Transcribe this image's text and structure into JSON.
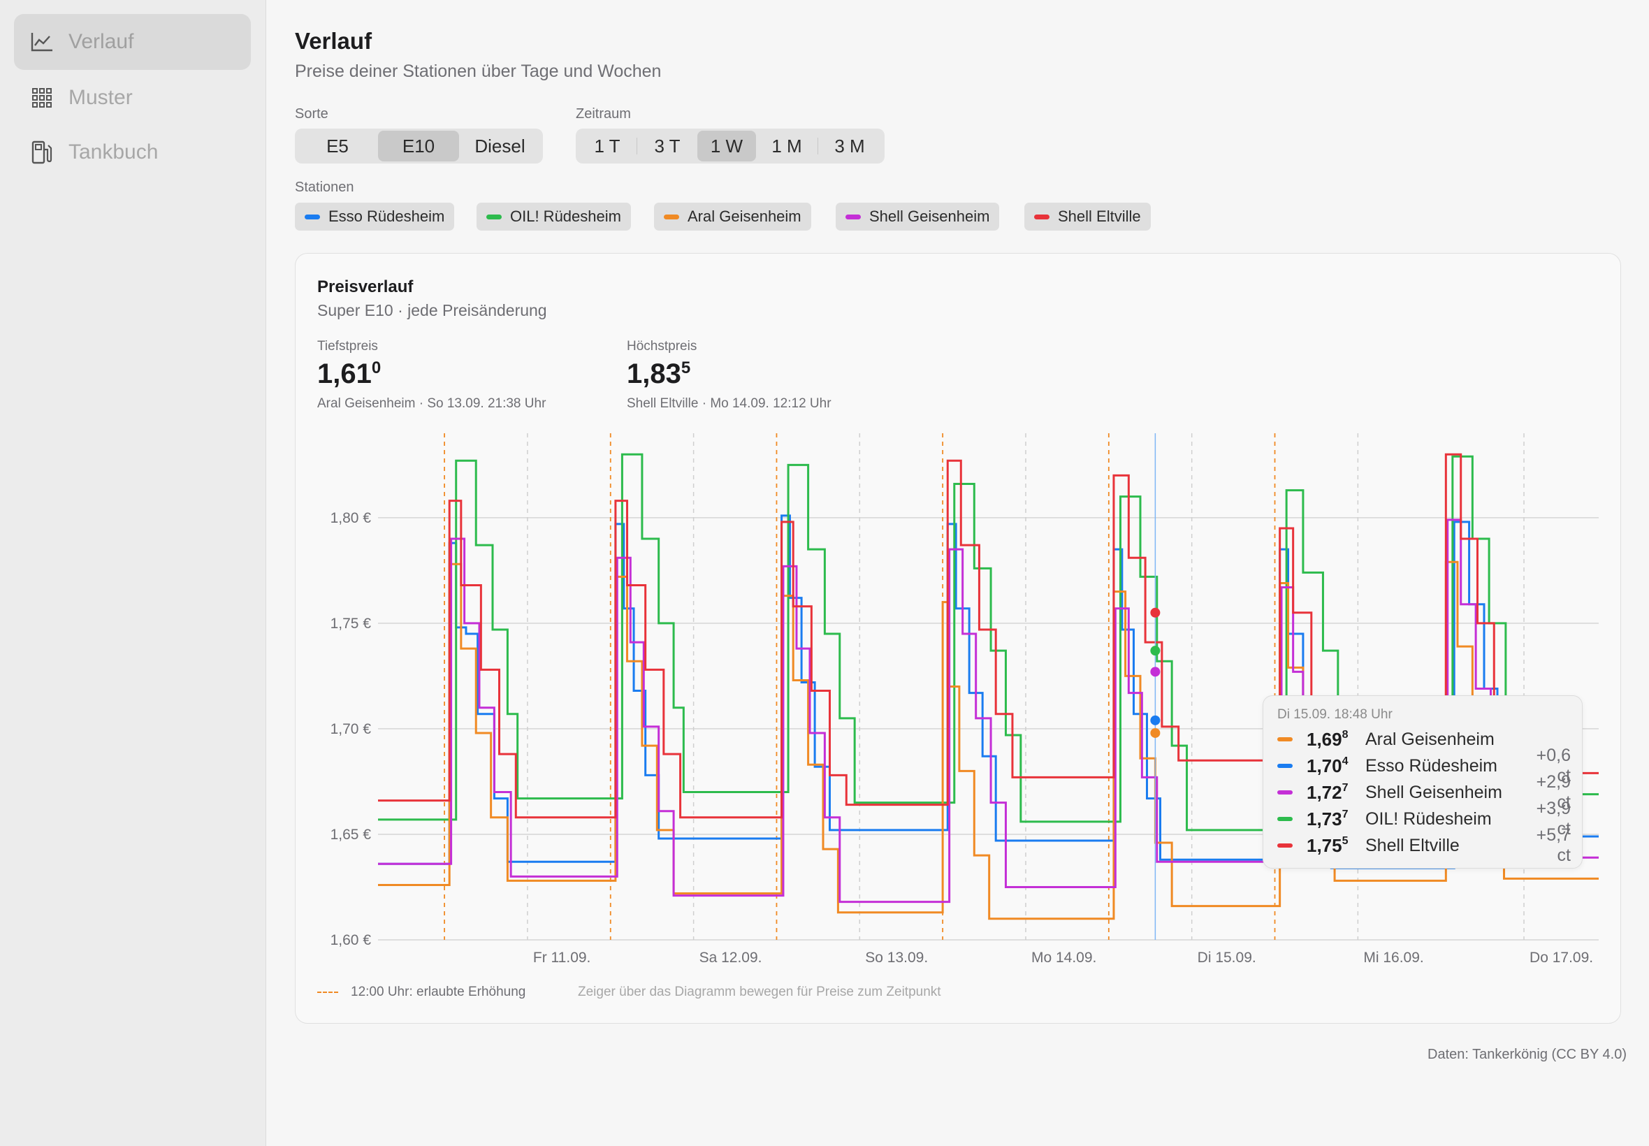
{
  "sidebar": {
    "items": [
      {
        "label": "Verlauf",
        "icon": "line-chart-icon",
        "active": true
      },
      {
        "label": "Muster",
        "icon": "grid-icon",
        "active": false
      },
      {
        "label": "Tankbuch",
        "icon": "fuel-pump-icon",
        "active": false
      }
    ]
  },
  "header": {
    "title": "Verlauf",
    "subtitle": "Preise deiner Stationen über Tage und Wochen"
  },
  "controls": {
    "sorte_label": "Sorte",
    "sorte_options": [
      "E5",
      "E10",
      "Diesel"
    ],
    "sorte_selected": "E10",
    "zeitraum_label": "Zeitraum",
    "zeitraum_options": [
      "1 T",
      "3 T",
      "1 W",
      "1 M",
      "3 M"
    ],
    "zeitraum_selected": "1 W",
    "stationen_label": "Stationen",
    "stations": [
      {
        "name": "Esso Rüdesheim",
        "color": "#1a7cf0"
      },
      {
        "name": "OIL! Rüdesheim",
        "color": "#2dbb4d"
      },
      {
        "name": "Aral Geisenheim",
        "color": "#f08a24"
      },
      {
        "name": "Shell Geisenheim",
        "color": "#c42fd6"
      },
      {
        "name": "Shell Eltville",
        "color": "#e8333a"
      }
    ]
  },
  "card": {
    "title": "Preisverlauf",
    "subtitle": "Super E10 · jede Preisänderung",
    "min": {
      "label": "Tiefstpreis",
      "value_main": "1,61",
      "value_sup": "0",
      "meta": "Aral Geisenheim · So 13.09. 21:38 Uhr"
    },
    "max": {
      "label": "Höchstpreis",
      "value_main": "1,83",
      "value_sup": "5",
      "meta": "Shell Eltville · Mo 14.09. 12:12 Uhr"
    },
    "legend_note": "12:00 Uhr: erlaubte Erhöhung",
    "hint": "Zeiger über das Diagramm bewegen für Preise zum Zeitpunkt"
  },
  "tooltip": {
    "time": "Di 15.09. 18:48 Uhr",
    "rows": [
      {
        "price_main": "1,69",
        "price_sup": "8",
        "name": "Aral Geisenheim",
        "delta": "",
        "color": "#f08a24"
      },
      {
        "price_main": "1,70",
        "price_sup": "4",
        "name": "Esso Rüdesheim",
        "delta": "+0,6 ct",
        "color": "#1a7cf0"
      },
      {
        "price_main": "1,72",
        "price_sup": "7",
        "name": "Shell Geisenheim",
        "delta": "+2,9 ct",
        "color": "#c42fd6"
      },
      {
        "price_main": "1,73",
        "price_sup": "7",
        "name": "OIL! Rüdesheim",
        "delta": "+3,9 ct",
        "color": "#2dbb4d"
      },
      {
        "price_main": "1,75",
        "price_sup": "5",
        "name": "Shell Eltville",
        "delta": "+5,7 ct",
        "color": "#e8333a"
      }
    ]
  },
  "source": "Daten: Tankerkönig (CC BY 4.0)",
  "chart_data": {
    "type": "line",
    "title": "Preisverlauf",
    "subtitle": "Super E10 · jede Preisänderung",
    "y_tick_labels": [
      "1,60 €",
      "1,65 €",
      "1,70 €",
      "1,75 €",
      "1,80 €"
    ],
    "y_ticks": [
      1.6,
      1.65,
      1.7,
      1.75,
      1.8
    ],
    "ylim": [
      1.6,
      1.84
    ],
    "x_tick_labels": [
      "Fr 11.09.",
      "Sa 12.09.",
      "So 13.09.",
      "Mo 14.09.",
      "Di 15.09.",
      "Mi 16.09.",
      "Do 17.09."
    ],
    "x_ticks": [
      1,
      2,
      3,
      4,
      5,
      6,
      7
    ],
    "xlim": [
      0.1,
      7.45
    ],
    "noon_markers": [
      0.5,
      1.5,
      2.5,
      3.5,
      4.5,
      5.5
    ],
    "cursor_x": 4.78,
    "grid": true,
    "series": [
      {
        "name": "Esso Rüdesheim",
        "color": "#1a7cf0",
        "x": [
          0.1,
          0.5,
          0.53,
          0.57,
          0.63,
          0.7,
          0.8,
          0.88,
          0.94,
          1.5,
          1.53,
          1.58,
          1.64,
          1.71,
          1.79,
          1.88,
          1.94,
          2.5,
          2.53,
          2.58,
          2.65,
          2.73,
          2.82,
          2.91,
          2.97,
          3.5,
          3.53,
          3.58,
          3.66,
          3.74,
          3.82,
          3.91,
          3.97,
          4.5,
          4.53,
          4.58,
          4.65,
          4.73,
          4.81,
          4.9,
          4.96,
          5.5,
          5.53,
          5.58,
          5.67,
          5.76,
          5.84,
          5.93,
          6.0,
          6.1,
          6.5,
          6.53,
          6.58,
          6.67,
          6.76,
          6.84,
          6.93,
          7.0,
          7.45
        ],
        "y": [
          1.636,
          1.636,
          1.788,
          1.748,
          1.745,
          1.707,
          1.667,
          1.637,
          1.637,
          1.637,
          1.797,
          1.757,
          1.718,
          1.678,
          1.648,
          1.648,
          1.648,
          1.648,
          1.801,
          1.762,
          1.722,
          1.682,
          1.652,
          1.652,
          1.652,
          1.652,
          1.797,
          1.757,
          1.717,
          1.687,
          1.647,
          1.647,
          1.647,
          1.647,
          1.785,
          1.747,
          1.707,
          1.667,
          1.638,
          1.638,
          1.638,
          1.638,
          1.785,
          1.745,
          1.704,
          1.664,
          1.634,
          1.634,
          1.634,
          1.634,
          1.634,
          1.634,
          1.798,
          1.759,
          1.719,
          1.679,
          1.649,
          1.649,
          1.649
        ]
      },
      {
        "name": "OIL! Rüdesheim",
        "color": "#2dbb4d",
        "x": [
          0.1,
          0.5,
          0.57,
          0.69,
          0.79,
          0.88,
          0.94,
          1.5,
          1.57,
          1.69,
          1.79,
          1.88,
          1.94,
          2.5,
          2.57,
          2.69,
          2.79,
          2.88,
          2.97,
          3.5,
          3.57,
          3.69,
          3.79,
          3.88,
          3.97,
          4.5,
          4.57,
          4.69,
          4.79,
          4.88,
          4.97,
          5.5,
          5.57,
          5.67,
          5.79,
          5.88,
          6.0,
          6.1,
          6.5,
          6.57,
          6.69,
          6.79,
          6.89,
          7.0,
          7.45
        ],
        "y": [
          1.657,
          1.657,
          1.827,
          1.787,
          1.747,
          1.707,
          1.667,
          1.667,
          1.83,
          1.79,
          1.75,
          1.71,
          1.67,
          1.67,
          1.825,
          1.785,
          1.745,
          1.705,
          1.665,
          1.665,
          1.816,
          1.776,
          1.737,
          1.697,
          1.656,
          1.656,
          1.81,
          1.772,
          1.732,
          1.692,
          1.652,
          1.652,
          1.813,
          1.774,
          1.737,
          1.697,
          1.657,
          1.657,
          1.657,
          1.829,
          1.79,
          1.75,
          1.71,
          1.669,
          1.669
        ]
      },
      {
        "name": "Aral Geisenheim",
        "color": "#f08a24",
        "x": [
          0.1,
          0.5,
          0.53,
          0.6,
          0.69,
          0.78,
          0.88,
          1.5,
          1.53,
          1.6,
          1.69,
          1.78,
          1.88,
          2.5,
          2.53,
          2.6,
          2.69,
          2.78,
          2.87,
          2.97,
          3.5,
          3.53,
          3.6,
          3.69,
          3.78,
          3.88,
          3.97,
          4.5,
          4.53,
          4.6,
          4.69,
          4.78,
          4.88,
          4.97,
          5.5,
          5.53,
          5.58,
          5.67,
          5.76,
          5.86,
          6.1,
          6.5,
          6.53,
          6.6,
          6.69,
          6.78,
          6.88,
          7.45
        ],
        "y": [
          1.626,
          1.626,
          1.778,
          1.738,
          1.698,
          1.658,
          1.628,
          1.628,
          1.772,
          1.732,
          1.692,
          1.652,
          1.622,
          1.622,
          1.763,
          1.723,
          1.683,
          1.643,
          1.613,
          1.613,
          1.76,
          1.72,
          1.68,
          1.64,
          1.61,
          1.61,
          1.61,
          1.61,
          1.765,
          1.725,
          1.686,
          1.646,
          1.616,
          1.616,
          1.616,
          1.769,
          1.729,
          1.698,
          1.658,
          1.628,
          1.628,
          1.628,
          1.779,
          1.739,
          1.699,
          1.659,
          1.629,
          1.629
        ]
      },
      {
        "name": "Shell Geisenheim",
        "color": "#c42fd6",
        "x": [
          0.1,
          0.5,
          0.54,
          0.62,
          0.71,
          0.8,
          0.9,
          0.94,
          1.5,
          1.54,
          1.62,
          1.7,
          1.79,
          1.88,
          1.94,
          2.5,
          2.54,
          2.62,
          2.7,
          2.79,
          2.88,
          2.97,
          3.5,
          3.54,
          3.62,
          3.7,
          3.79,
          3.88,
          3.97,
          4.5,
          4.54,
          4.62,
          4.7,
          4.79,
          4.88,
          4.97,
          5.5,
          5.54,
          5.61,
          5.67,
          5.75,
          5.84,
          6.0,
          6.1,
          6.5,
          6.54,
          6.62,
          6.71,
          6.8,
          6.89,
          7.0,
          7.45
        ],
        "y": [
          1.636,
          1.636,
          1.79,
          1.75,
          1.71,
          1.67,
          1.63,
          1.63,
          1.63,
          1.781,
          1.741,
          1.701,
          1.661,
          1.621,
          1.621,
          1.621,
          1.777,
          1.738,
          1.698,
          1.658,
          1.618,
          1.618,
          1.618,
          1.785,
          1.745,
          1.705,
          1.665,
          1.625,
          1.625,
          1.625,
          1.757,
          1.717,
          1.677,
          1.637,
          1.637,
          1.637,
          1.637,
          1.767,
          1.727,
          1.707,
          1.667,
          1.647,
          1.647,
          1.647,
          1.647,
          1.799,
          1.759,
          1.719,
          1.679,
          1.639,
          1.639,
          1.639
        ]
      },
      {
        "name": "Shell Eltville",
        "color": "#e8333a",
        "x": [
          0.1,
          0.5,
          0.53,
          0.6,
          0.72,
          0.83,
          0.93,
          1.5,
          1.53,
          1.6,
          1.71,
          1.82,
          1.92,
          2.5,
          2.53,
          2.6,
          2.71,
          2.82,
          2.92,
          3.5,
          3.53,
          3.61,
          3.72,
          3.82,
          3.92,
          4.5,
          4.53,
          4.62,
          4.72,
          4.82,
          4.92,
          5.5,
          5.53,
          5.61,
          5.72,
          5.82,
          5.92,
          6.1,
          6.5,
          6.53,
          6.62,
          6.72,
          6.82,
          6.92,
          7.45
        ],
        "y": [
          1.666,
          1.666,
          1.808,
          1.768,
          1.728,
          1.688,
          1.658,
          1.658,
          1.808,
          1.768,
          1.728,
          1.688,
          1.658,
          1.658,
          1.798,
          1.758,
          1.718,
          1.678,
          1.664,
          1.664,
          1.827,
          1.787,
          1.747,
          1.707,
          1.677,
          1.677,
          1.82,
          1.781,
          1.741,
          1.701,
          1.685,
          1.685,
          1.795,
          1.755,
          1.715,
          1.685,
          1.685,
          1.685,
          1.685,
          1.83,
          1.79,
          1.75,
          1.71,
          1.679,
          1.679
        ]
      }
    ],
    "cursor_points": [
      {
        "name": "Shell Eltville",
        "y": 1.755,
        "color": "#e8333a"
      },
      {
        "name": "OIL! Rüdesheim",
        "y": 1.737,
        "color": "#2dbb4d"
      },
      {
        "name": "Shell Geisenheim",
        "y": 1.727,
        "color": "#c42fd6"
      },
      {
        "name": "Esso Rüdesheim",
        "y": 1.704,
        "color": "#1a7cf0"
      },
      {
        "name": "Aral Geisenheim",
        "y": 1.698,
        "color": "#f08a24"
      }
    ]
  }
}
